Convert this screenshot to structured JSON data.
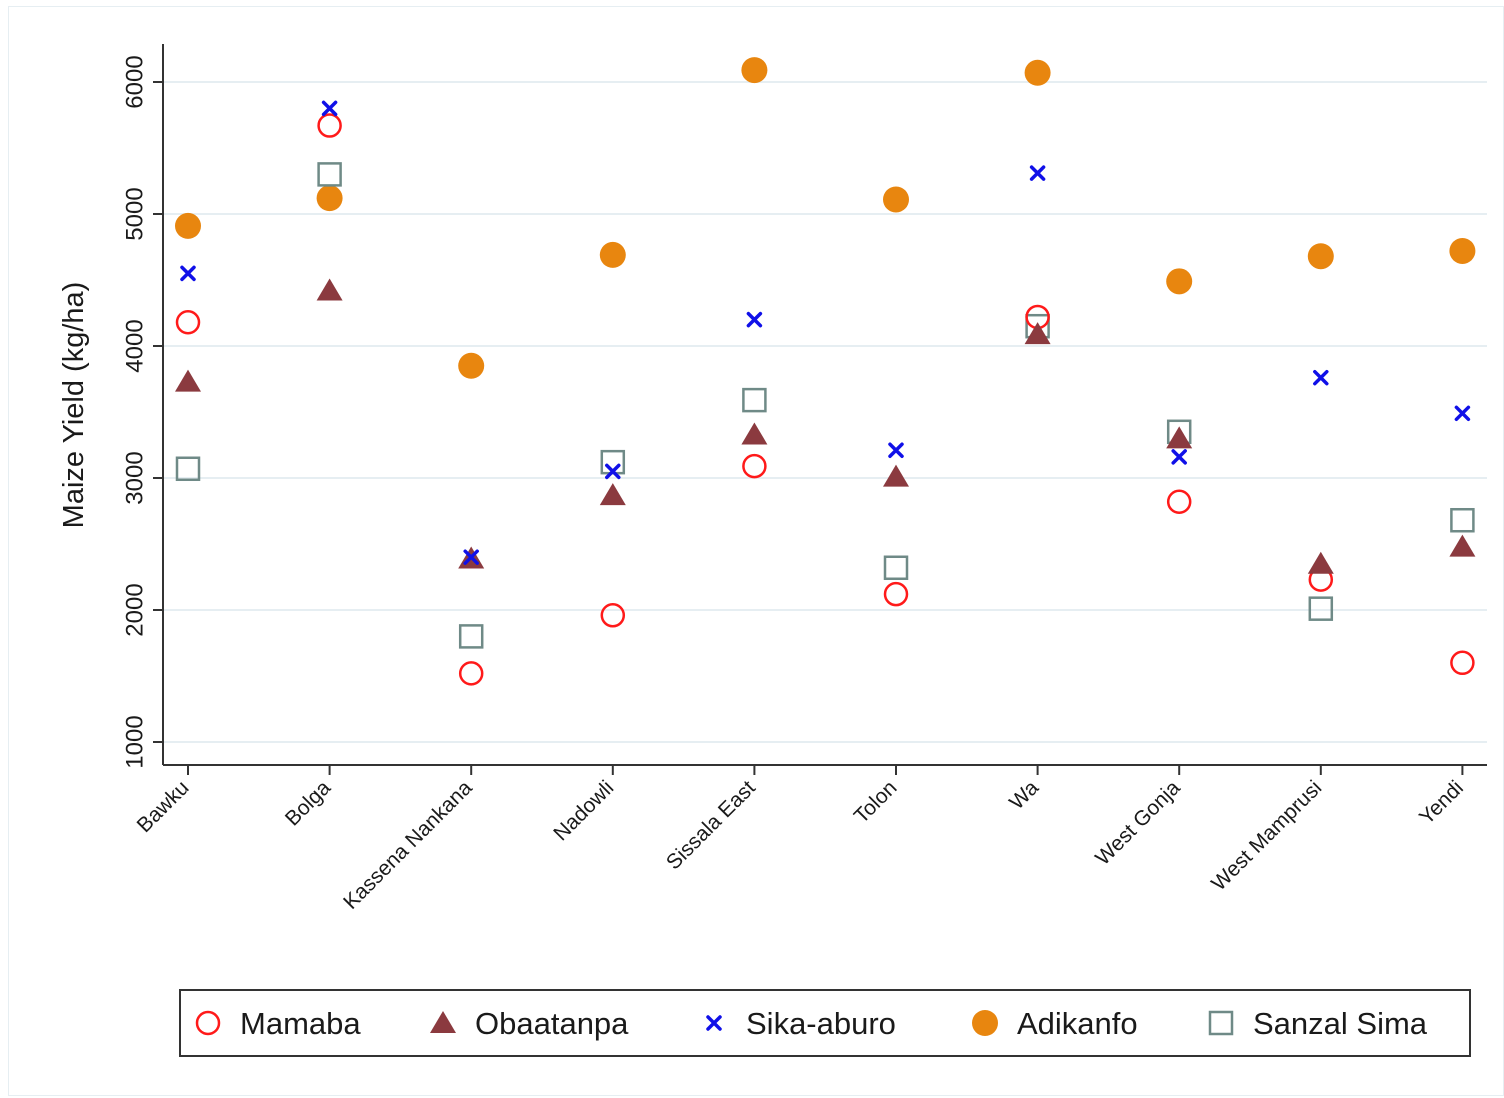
{
  "chart_data": {
    "type": "scatter",
    "title": "",
    "xlabel": "",
    "ylabel": "Maize Yield (kg/ha)",
    "ylim": [
      850,
      6280
    ],
    "yticks": [
      "1000",
      "2000",
      "3000",
      "4000",
      "5000",
      "6000"
    ],
    "grid": true,
    "legend_position": "bottom",
    "categories": [
      "Bawku",
      "Bolga",
      "Kassena Nankana",
      "Nadowli",
      "Sissala East",
      "Tolon",
      "Wa",
      "West Gonja",
      "West Mamprusi",
      "Yendi"
    ],
    "series": [
      {
        "name": "Mamaba",
        "marker": "hollow-circle",
        "color": "#ff1a1a",
        "values": [
          4180,
          5670,
          1520,
          1960,
          3090,
          2120,
          4220,
          2820,
          2230,
          1600
        ]
      },
      {
        "name": "Obaatanpa",
        "marker": "filled-triangle",
        "color": "#8b3a3f",
        "values": [
          3730,
          4420,
          2390,
          2870,
          3330,
          3010,
          4090,
          3300,
          2350,
          2480
        ]
      },
      {
        "name": "Sika-aburo",
        "marker": "x",
        "color": "#1010e8",
        "values": [
          4550,
          5800,
          2400,
          3050,
          4200,
          3210,
          5310,
          3160,
          3760,
          3490
        ]
      },
      {
        "name": "Adikanfo",
        "marker": "filled-circle",
        "color": "#e8860f",
        "values": [
          4910,
          5120,
          3850,
          4690,
          6090,
          5110,
          6070,
          4490,
          4680,
          4720
        ]
      },
      {
        "name": "Sanzal Sima",
        "marker": "hollow-square",
        "color": "#6f8a87",
        "values": [
          3070,
          5300,
          1800,
          3120,
          3590,
          2320,
          4150,
          3350,
          2010,
          2680
        ]
      }
    ]
  }
}
